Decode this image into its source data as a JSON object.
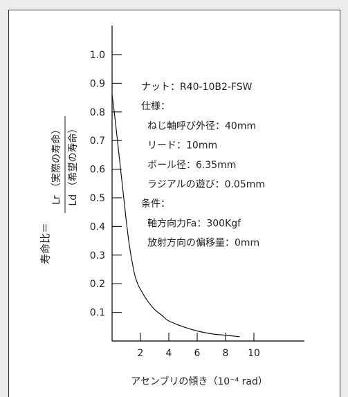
{
  "chart_data": {
    "type": "line",
    "xlabel": "アセンブリの傾き（10⁻⁴ rad）",
    "ylabel": {
      "prefix": "寿命比＝",
      "numerator_sym": "Lr",
      "numerator_text": "（実際の寿命）",
      "denominator_sym": "Ld",
      "denominator_text": "（希望の寿命）"
    },
    "xlim": [
      0,
      14.5
    ],
    "ylim": [
      0,
      1.1
    ],
    "x_ticks": [
      "2",
      "4",
      "6",
      "8",
      "10"
    ],
    "x_tick_values": [
      2,
      4,
      6,
      8,
      10
    ],
    "y_ticks": [
      "0.1",
      "0.2",
      "0.3",
      "0.4",
      "0.5",
      "0.6",
      "0.7",
      "0.8",
      "0.9",
      "1.0"
    ],
    "y_tick_values": [
      0.1,
      0.2,
      0.3,
      0.4,
      0.5,
      0.6,
      0.7,
      0.8,
      0.9,
      1.0
    ],
    "series": [
      {
        "x": [
          0,
          0.2,
          0.4,
          0.6,
          0.8,
          1.0,
          1.2,
          1.4,
          1.6,
          1.8,
          2.0,
          2.5,
          3.0,
          3.5,
          4.0,
          5.0,
          6.0,
          7.0,
          8.0,
          9.0
        ],
        "y": [
          0.86,
          0.78,
          0.69,
          0.6,
          0.51,
          0.42,
          0.34,
          0.28,
          0.23,
          0.2,
          0.18,
          0.14,
          0.11,
          0.09,
          0.07,
          0.05,
          0.035,
          0.025,
          0.02,
          0.015
        ]
      }
    ],
    "annotations": [
      {
        "text": "ナット：R40-10B2-FSW",
        "indent": false
      },
      {
        "text": "仕様：",
        "indent": false
      },
      {
        "text": "ねじ軸呼び外径：40mm",
        "indent": true
      },
      {
        "text": "リード：10mm",
        "indent": true
      },
      {
        "text": "ボール径：6.35mm",
        "indent": true
      },
      {
        "text": "ラジアルの遊び：0.05mm",
        "indent": true
      },
      {
        "text": "条件：",
        "indent": false
      },
      {
        "text": "軸方向力Fa：300Kgf",
        "indent": true
      },
      {
        "text": "放射方向の偏移量：0mm",
        "indent": true
      }
    ],
    "grid": false,
    "colors": {
      "line": "#111111",
      "axis": "#222222",
      "frame": "#333333",
      "background": "#ececec"
    }
  }
}
